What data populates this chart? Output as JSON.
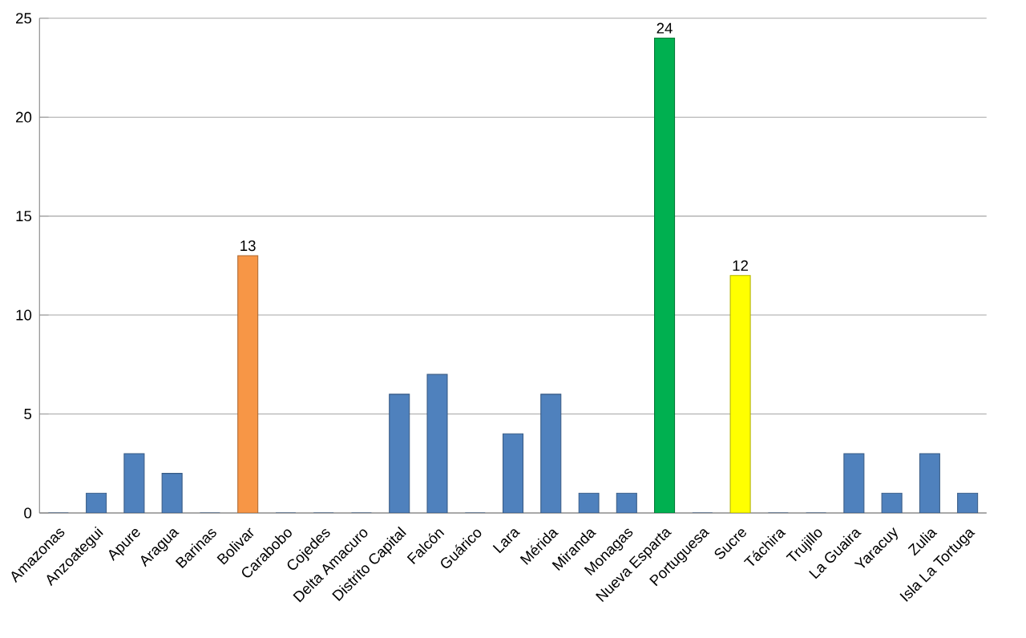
{
  "chart_data": {
    "type": "bar",
    "categories": [
      "Amazonas",
      "Anzoategui",
      "Apure",
      "Aragua",
      "Barinas",
      "Bolivar",
      "Carabobo",
      "Cojedes",
      "Delta Amacuro",
      "Distrito Capital",
      "Falcón",
      "Guárico",
      "Lara",
      "Mérida",
      "Miranda",
      "Monagas",
      "Nueva Esparta",
      "Portuguesa",
      "Sucre",
      "Táchira",
      "Trujillo",
      "La Guaira",
      "Yaracuy",
      "Zulia",
      "Isla La Tortuga"
    ],
    "values": [
      0,
      1,
      3,
      2,
      0,
      13,
      0,
      0,
      0,
      6,
      7,
      0,
      4,
      6,
      1,
      1,
      24,
      0,
      12,
      0,
      0,
      3,
      1,
      3,
      1
    ],
    "colors": [
      "#4f81bd",
      "#4f81bd",
      "#4f81bd",
      "#4f81bd",
      "#4f81bd",
      "#f79646",
      "#4f81bd",
      "#4f81bd",
      "#4f81bd",
      "#4f81bd",
      "#4f81bd",
      "#4f81bd",
      "#4f81bd",
      "#4f81bd",
      "#4f81bd",
      "#4f81bd",
      "#00b050",
      "#4f81bd",
      "#ffff00",
      "#4f81bd",
      "#4f81bd",
      "#4f81bd",
      "#4f81bd",
      "#4f81bd",
      "#4f81bd"
    ],
    "value_labels": [
      null,
      null,
      null,
      null,
      null,
      "13",
      null,
      null,
      null,
      null,
      null,
      null,
      null,
      null,
      null,
      null,
      "24",
      null,
      "12",
      null,
      null,
      null,
      null,
      null,
      null
    ],
    "ylim": [
      0,
      25
    ],
    "yticks": [
      0,
      5,
      10,
      15,
      20,
      25
    ],
    "grid": "y"
  }
}
